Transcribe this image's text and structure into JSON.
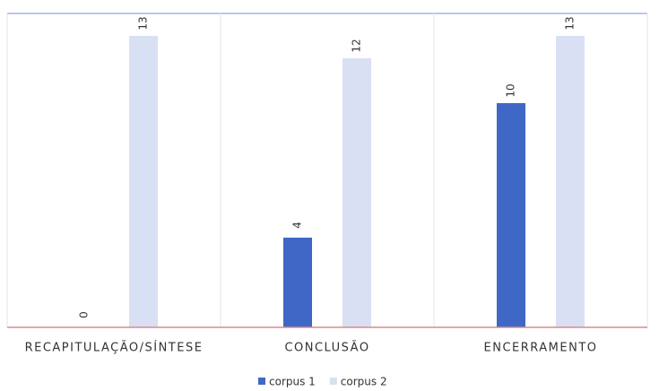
{
  "chart_data": {
    "type": "bar",
    "categories": [
      "RECAPITULAÇÃO/SÍNTESE",
      "CONCLUSÃO",
      "ENCERRAMENTO"
    ],
    "series": [
      {
        "name": "corpus 1",
        "color": "#3f68c6",
        "values": [
          0,
          4,
          10
        ]
      },
      {
        "name": "corpus 2",
        "color": "#d9e0f3",
        "values": [
          13,
          12,
          13
        ]
      }
    ],
    "ylim": [
      0,
      14
    ]
  }
}
